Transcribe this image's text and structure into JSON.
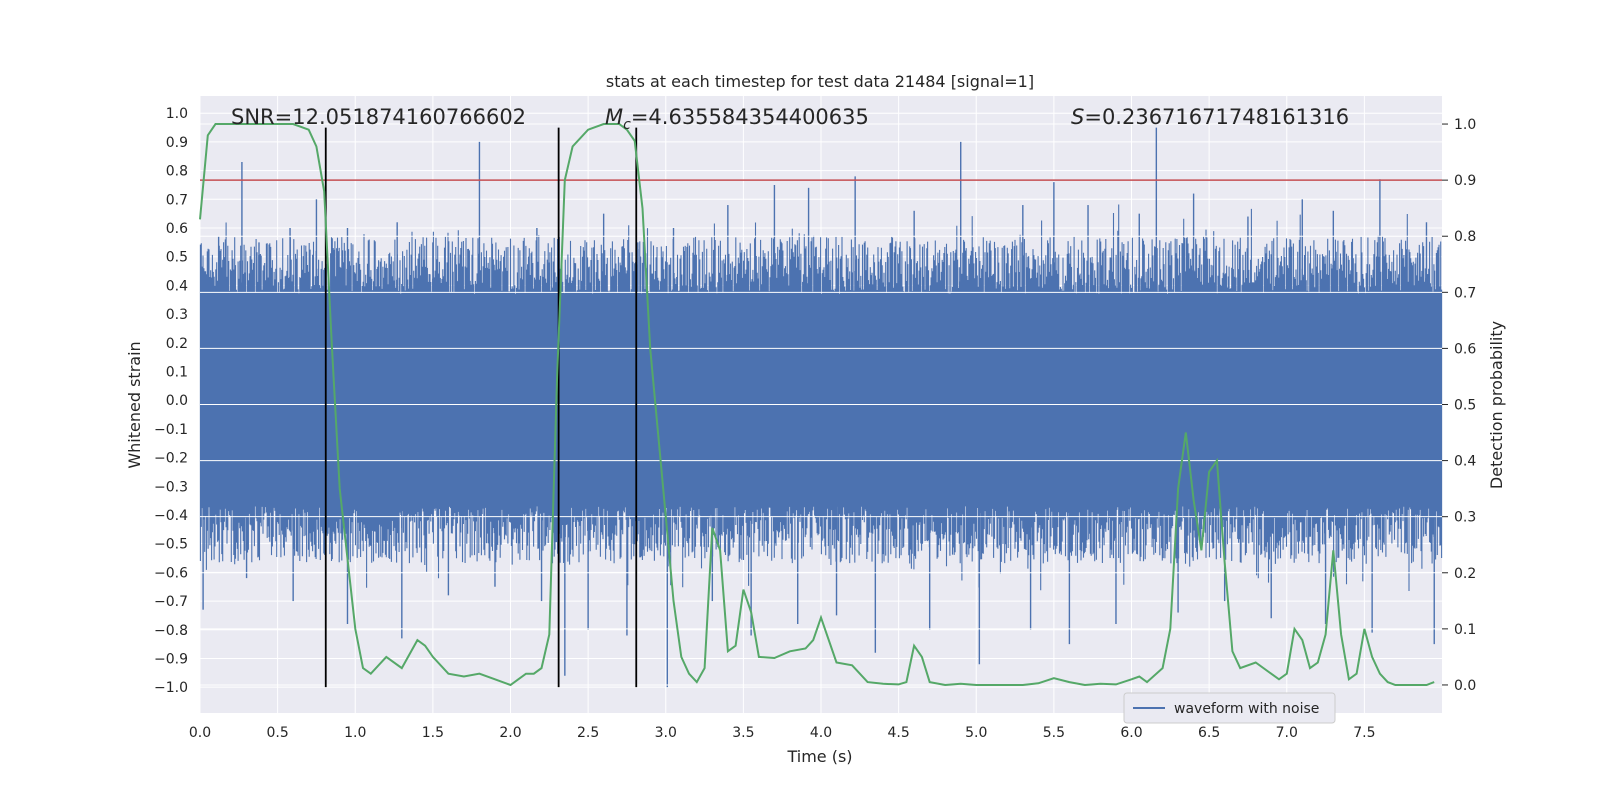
{
  "chart_data": {
    "type": "line",
    "title": "stats at each timestep for test data 21484 [signal=1]",
    "xlabel": "Time (s)",
    "ylabel_left": "Whitened strain",
    "ylabel_right": "Detection probability",
    "xlim": [
      0.0,
      8.0
    ],
    "ylim_left": [
      -1.09,
      1.06
    ],
    "ylim_right": [
      -0.05,
      1.05
    ],
    "x_ticks": [
      "0.0",
      "0.5",
      "1.0",
      "1.5",
      "2.0",
      "2.5",
      "3.0",
      "3.5",
      "4.0",
      "4.5",
      "5.0",
      "5.5",
      "6.0",
      "6.5",
      "7.0",
      "7.5"
    ],
    "x_tick_values": [
      0,
      0.5,
      1,
      1.5,
      2,
      2.5,
      3,
      3.5,
      4,
      4.5,
      5,
      5.5,
      6,
      6.5,
      7,
      7.5
    ],
    "y_left_ticks": [
      "1.0",
      "0.9",
      "0.8",
      "0.7",
      "0.6",
      "0.5",
      "0.4",
      "0.3",
      "0.2",
      "0.1",
      "0.0",
      "−0.1",
      "−0.2",
      "−0.3",
      "−0.4",
      "−0.5",
      "−0.6",
      "−0.7",
      "−0.8",
      "−0.9",
      "−1.0"
    ],
    "y_left_tick_values": [
      1,
      0.9,
      0.8,
      0.7,
      0.6,
      0.5,
      0.4,
      0.3,
      0.2,
      0.1,
      0,
      -0.1,
      -0.2,
      -0.3,
      -0.4,
      -0.5,
      -0.6,
      -0.7,
      -0.8,
      -0.9,
      -1.0
    ],
    "y_right_ticks": [
      "1.0",
      "0.9",
      "0.8",
      "0.7",
      "0.6",
      "0.5",
      "0.4",
      "0.3",
      "0.2",
      "0.1",
      "0.0"
    ],
    "y_right_tick_values": [
      1,
      0.9,
      0.8,
      0.7,
      0.6,
      0.5,
      0.4,
      0.3,
      0.2,
      0.1,
      0
    ],
    "annotations": {
      "snr": "SNR=12.051874160766602",
      "mc_symbol": "M",
      "mc_subscript": "c",
      "mc_value": "=4.635584354400635",
      "s_symbol": "S",
      "s_value": "=0.23671671748161316"
    },
    "legend": {
      "label": "waveform with noise",
      "placement": "lower-right"
    },
    "threshold": {
      "value": 0.9,
      "color": "#c44e52"
    },
    "vertical_markers": [
      0.81,
      2.31,
      2.81
    ],
    "vertical_marker_range": [
      -1.0,
      0.95
    ],
    "waveform": {
      "name": "waveform with noise",
      "color": "#4c72b0",
      "band_core": [
        -0.15,
        0.18
      ],
      "band_bulk": [
        -0.42,
        0.42
      ],
      "spikes_positive": [
        [
          0.12,
          0.57
        ],
        [
          0.27,
          0.83
        ],
        [
          0.38,
          0.55
        ],
        [
          0.58,
          0.6
        ],
        [
          0.75,
          0.7
        ],
        [
          0.95,
          0.6
        ],
        [
          1.27,
          0.62
        ],
        [
          1.5,
          0.55
        ],
        [
          1.8,
          0.9
        ],
        [
          2.17,
          0.6
        ],
        [
          2.6,
          0.65
        ],
        [
          2.82,
          0.55
        ],
        [
          3.05,
          0.6
        ],
        [
          3.4,
          0.68
        ],
        [
          3.7,
          0.75
        ],
        [
          3.92,
          0.74
        ],
        [
          4.22,
          0.78
        ],
        [
          4.6,
          0.66
        ],
        [
          4.9,
          0.9
        ],
        [
          5.3,
          0.68
        ],
        [
          5.5,
          0.76
        ],
        [
          5.72,
          0.68
        ],
        [
          6.05,
          0.65
        ],
        [
          6.16,
          0.95
        ],
        [
          6.4,
          0.72
        ],
        [
          6.75,
          0.64
        ],
        [
          7.1,
          0.7
        ],
        [
          7.3,
          0.66
        ],
        [
          7.6,
          0.77
        ],
        [
          7.9,
          0.62
        ]
      ],
      "spikes_negative": [
        [
          0.02,
          -0.73
        ],
        [
          0.3,
          -0.62
        ],
        [
          0.6,
          -0.7
        ],
        [
          0.95,
          -0.78
        ],
        [
          1.3,
          -0.83
        ],
        [
          1.6,
          -0.68
        ],
        [
          1.9,
          -0.65
        ],
        [
          2.2,
          -0.7
        ],
        [
          2.35,
          -0.96
        ],
        [
          2.5,
          -0.8
        ],
        [
          2.75,
          -0.82
        ],
        [
          3.01,
          -1.0
        ],
        [
          3.3,
          -0.7
        ],
        [
          3.55,
          -0.82
        ],
        [
          3.85,
          -0.78
        ],
        [
          4.1,
          -0.75
        ],
        [
          4.35,
          -0.88
        ],
        [
          4.7,
          -0.8
        ],
        [
          5.02,
          -0.92
        ],
        [
          5.35,
          -0.8
        ],
        [
          5.6,
          -0.85
        ],
        [
          5.9,
          -0.78
        ],
        [
          6.3,
          -0.74
        ],
        [
          6.6,
          -0.7
        ],
        [
          6.9,
          -0.76
        ],
        [
          7.25,
          -0.78
        ],
        [
          7.55,
          -0.81
        ],
        [
          7.95,
          -0.85
        ]
      ]
    },
    "detection_probability": {
      "color": "#55a868",
      "x": [
        0.0,
        0.05,
        0.1,
        0.2,
        0.3,
        0.4,
        0.5,
        0.6,
        0.7,
        0.75,
        0.8,
        0.85,
        0.9,
        1.0,
        1.05,
        1.1,
        1.2,
        1.3,
        1.4,
        1.45,
        1.5,
        1.6,
        1.7,
        1.8,
        1.9,
        2.0,
        2.05,
        2.1,
        2.15,
        2.2,
        2.25,
        2.3,
        2.35,
        2.4,
        2.5,
        2.6,
        2.7,
        2.75,
        2.8,
        2.85,
        2.9,
        3.0,
        3.05,
        3.1,
        3.15,
        3.2,
        3.25,
        3.3,
        3.35,
        3.4,
        3.45,
        3.5,
        3.55,
        3.6,
        3.7,
        3.8,
        3.9,
        3.95,
        4.0,
        4.1,
        4.2,
        4.3,
        4.4,
        4.5,
        4.55,
        4.6,
        4.65,
        4.7,
        4.8,
        4.9,
        5.0,
        5.2,
        5.3,
        5.4,
        5.5,
        5.6,
        5.7,
        5.8,
        5.9,
        6.0,
        6.05,
        6.1,
        6.2,
        6.25,
        6.3,
        6.35,
        6.4,
        6.45,
        6.5,
        6.55,
        6.6,
        6.65,
        6.7,
        6.8,
        6.9,
        6.95,
        7.0,
        7.05,
        7.1,
        7.15,
        7.2,
        7.25,
        7.3,
        7.35,
        7.4,
        7.45,
        7.5,
        7.55,
        7.6,
        7.65,
        7.7,
        7.8,
        7.9,
        7.95
      ],
      "y": [
        0.83,
        0.98,
        1.0,
        1.0,
        1.0,
        1.0,
        1.0,
        1.0,
        0.99,
        0.96,
        0.88,
        0.6,
        0.35,
        0.1,
        0.03,
        0.02,
        0.05,
        0.03,
        0.08,
        0.07,
        0.05,
        0.02,
        0.015,
        0.02,
        0.01,
        0.0,
        0.01,
        0.02,
        0.02,
        0.03,
        0.09,
        0.55,
        0.9,
        0.96,
        0.99,
        1.0,
        1.0,
        0.99,
        0.97,
        0.85,
        0.6,
        0.3,
        0.15,
        0.05,
        0.02,
        0.005,
        0.03,
        0.28,
        0.24,
        0.06,
        0.07,
        0.17,
        0.13,
        0.05,
        0.048,
        0.06,
        0.065,
        0.08,
        0.12,
        0.04,
        0.035,
        0.005,
        0.002,
        0.001,
        0.005,
        0.07,
        0.05,
        0.005,
        0.0,
        0.002,
        0.0,
        0.0,
        0.0,
        0.003,
        0.012,
        0.005,
        0.0,
        0.002,
        0.001,
        0.01,
        0.015,
        0.005,
        0.03,
        0.1,
        0.35,
        0.45,
        0.33,
        0.24,
        0.38,
        0.4,
        0.22,
        0.06,
        0.03,
        0.04,
        0.02,
        0.01,
        0.02,
        0.1,
        0.08,
        0.03,
        0.04,
        0.09,
        0.24,
        0.09,
        0.01,
        0.02,
        0.1,
        0.05,
        0.02,
        0.005,
        0.0,
        0.0,
        0.0,
        0.005
      ]
    }
  }
}
